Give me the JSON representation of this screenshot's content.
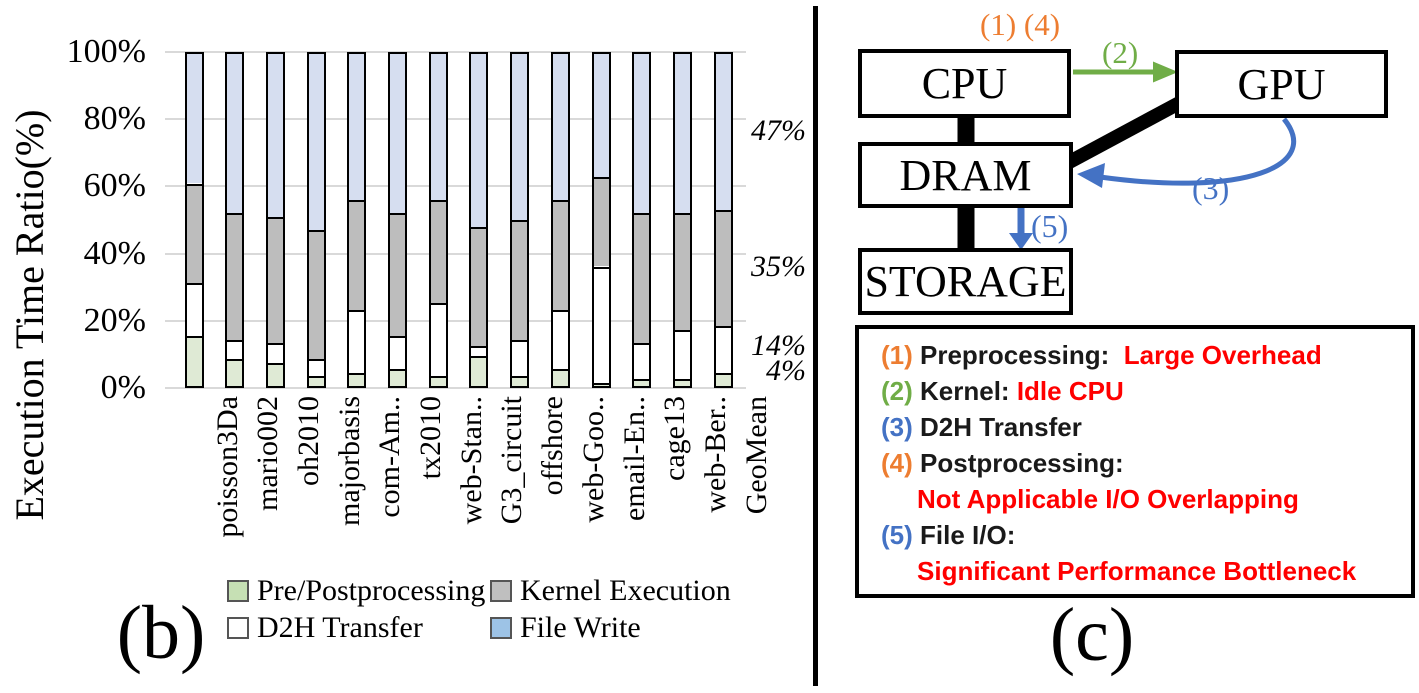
{
  "figure": {
    "panel_b_label": "(b)",
    "panel_c_label": "(c)"
  },
  "colors": {
    "orange": "#ED7D31",
    "green": "#70AD47",
    "blue": "#4472C4",
    "red": "#FF0000",
    "black": "#1a1a1a",
    "gridline": "#d9d9d9"
  },
  "chart_data": {
    "type": "bar",
    "stacked": true,
    "title": "",
    "xlabel": "",
    "ylabel": "Execution Time Ratio(%)",
    "ylim": [
      0,
      100
    ],
    "y_ticks": [
      "100%",
      "80%",
      "60%",
      "40%",
      "20%",
      "0%"
    ],
    "grid": true,
    "categories": [
      "poisson3Da",
      "mario002",
      "oh2010",
      "majorbasis",
      "com-Am..",
      "tx2010",
      "web-Stan..",
      "G3_circuit",
      "offshore",
      "web-Goo..",
      "email-En..",
      "cage13",
      "web-Ber..",
      "GeoMean"
    ],
    "series_note": "stacked bottom-to-top; values are percent of execution time",
    "series": [
      {
        "name": "Pre/Postprocessing",
        "color": "#DFEAD5",
        "values": [
          15,
          8,
          7,
          3,
          4,
          5,
          3,
          9,
          3,
          5,
          1,
          2,
          2,
          4
        ]
      },
      {
        "name": "D2H Transfer",
        "color": "#FFFFFF",
        "values": [
          16,
          6,
          6,
          5,
          19,
          10,
          22,
          3,
          11,
          18,
          35,
          11,
          15,
          14
        ]
      },
      {
        "name": "Kernel Execution",
        "color": "#BDBDBD",
        "values": [
          30,
          38,
          38,
          39,
          33,
          37,
          31,
          36,
          36,
          33,
          27,
          39,
          35,
          35
        ]
      },
      {
        "name": "File Write",
        "color": "#D6DEF0",
        "values": [
          39,
          48,
          49,
          53,
          44,
          48,
          44,
          52,
          50,
          44,
          37,
          48,
          48,
          47
        ]
      }
    ],
    "legend": [
      {
        "label": "Pre/Postprocessing",
        "swatch": "#C6E0B4"
      },
      {
        "label": "Kernel Execution",
        "swatch": "#BFBFBF"
      },
      {
        "label": "D2H Transfer",
        "swatch": "#FFFFFF"
      },
      {
        "label": "File Write",
        "swatch": "#9DC3E6"
      }
    ],
    "annotations": [
      {
        "text": "47%",
        "at_pct": 76.5
      },
      {
        "text": "35%",
        "at_pct": 36
      },
      {
        "text": "14%",
        "at_pct": 12.5
      },
      {
        "text": "4%",
        "at_pct": 5
      }
    ]
  },
  "diagram": {
    "boxes": [
      {
        "id": "cpu",
        "label": "CPU"
      },
      {
        "id": "gpu",
        "label": "GPU"
      },
      {
        "id": "dram",
        "label": "DRAM"
      },
      {
        "id": "storage",
        "label": "STORAGE"
      }
    ],
    "arrow_labels": {
      "cpu_top": "(1) (4)",
      "kernel": "(2)",
      "d2h": "(3)",
      "file_io": "(5)"
    },
    "info_box": {
      "lines": [
        {
          "indent": false,
          "parts": [
            {
              "t": "(1)",
              "c": "orange"
            },
            {
              "t": " Preprocessing:  ",
              "c": "black"
            },
            {
              "t": "Large Overhead",
              "c": "red"
            }
          ]
        },
        {
          "indent": false,
          "parts": [
            {
              "t": "(2)",
              "c": "green"
            },
            {
              "t": " Kernel: ",
              "c": "black"
            },
            {
              "t": "Idle CPU",
              "c": "red"
            }
          ]
        },
        {
          "indent": false,
          "parts": [
            {
              "t": "(3)",
              "c": "blue"
            },
            {
              "t": " D2H Transfer",
              "c": "black"
            }
          ]
        },
        {
          "indent": false,
          "parts": [
            {
              "t": "(4)",
              "c": "orange"
            },
            {
              "t": " Postprocessing:",
              "c": "black"
            }
          ]
        },
        {
          "indent": true,
          "parts": [
            {
              "t": "Not Applicable I/O Overlapping",
              "c": "red"
            }
          ]
        },
        {
          "indent": false,
          "parts": [
            {
              "t": "(5)",
              "c": "blue"
            },
            {
              "t": " File I/O:",
              "c": "black"
            }
          ]
        },
        {
          "indent": true,
          "parts": [
            {
              "t": "Significant Performance Bottleneck",
              "c": "red"
            }
          ]
        }
      ]
    }
  }
}
